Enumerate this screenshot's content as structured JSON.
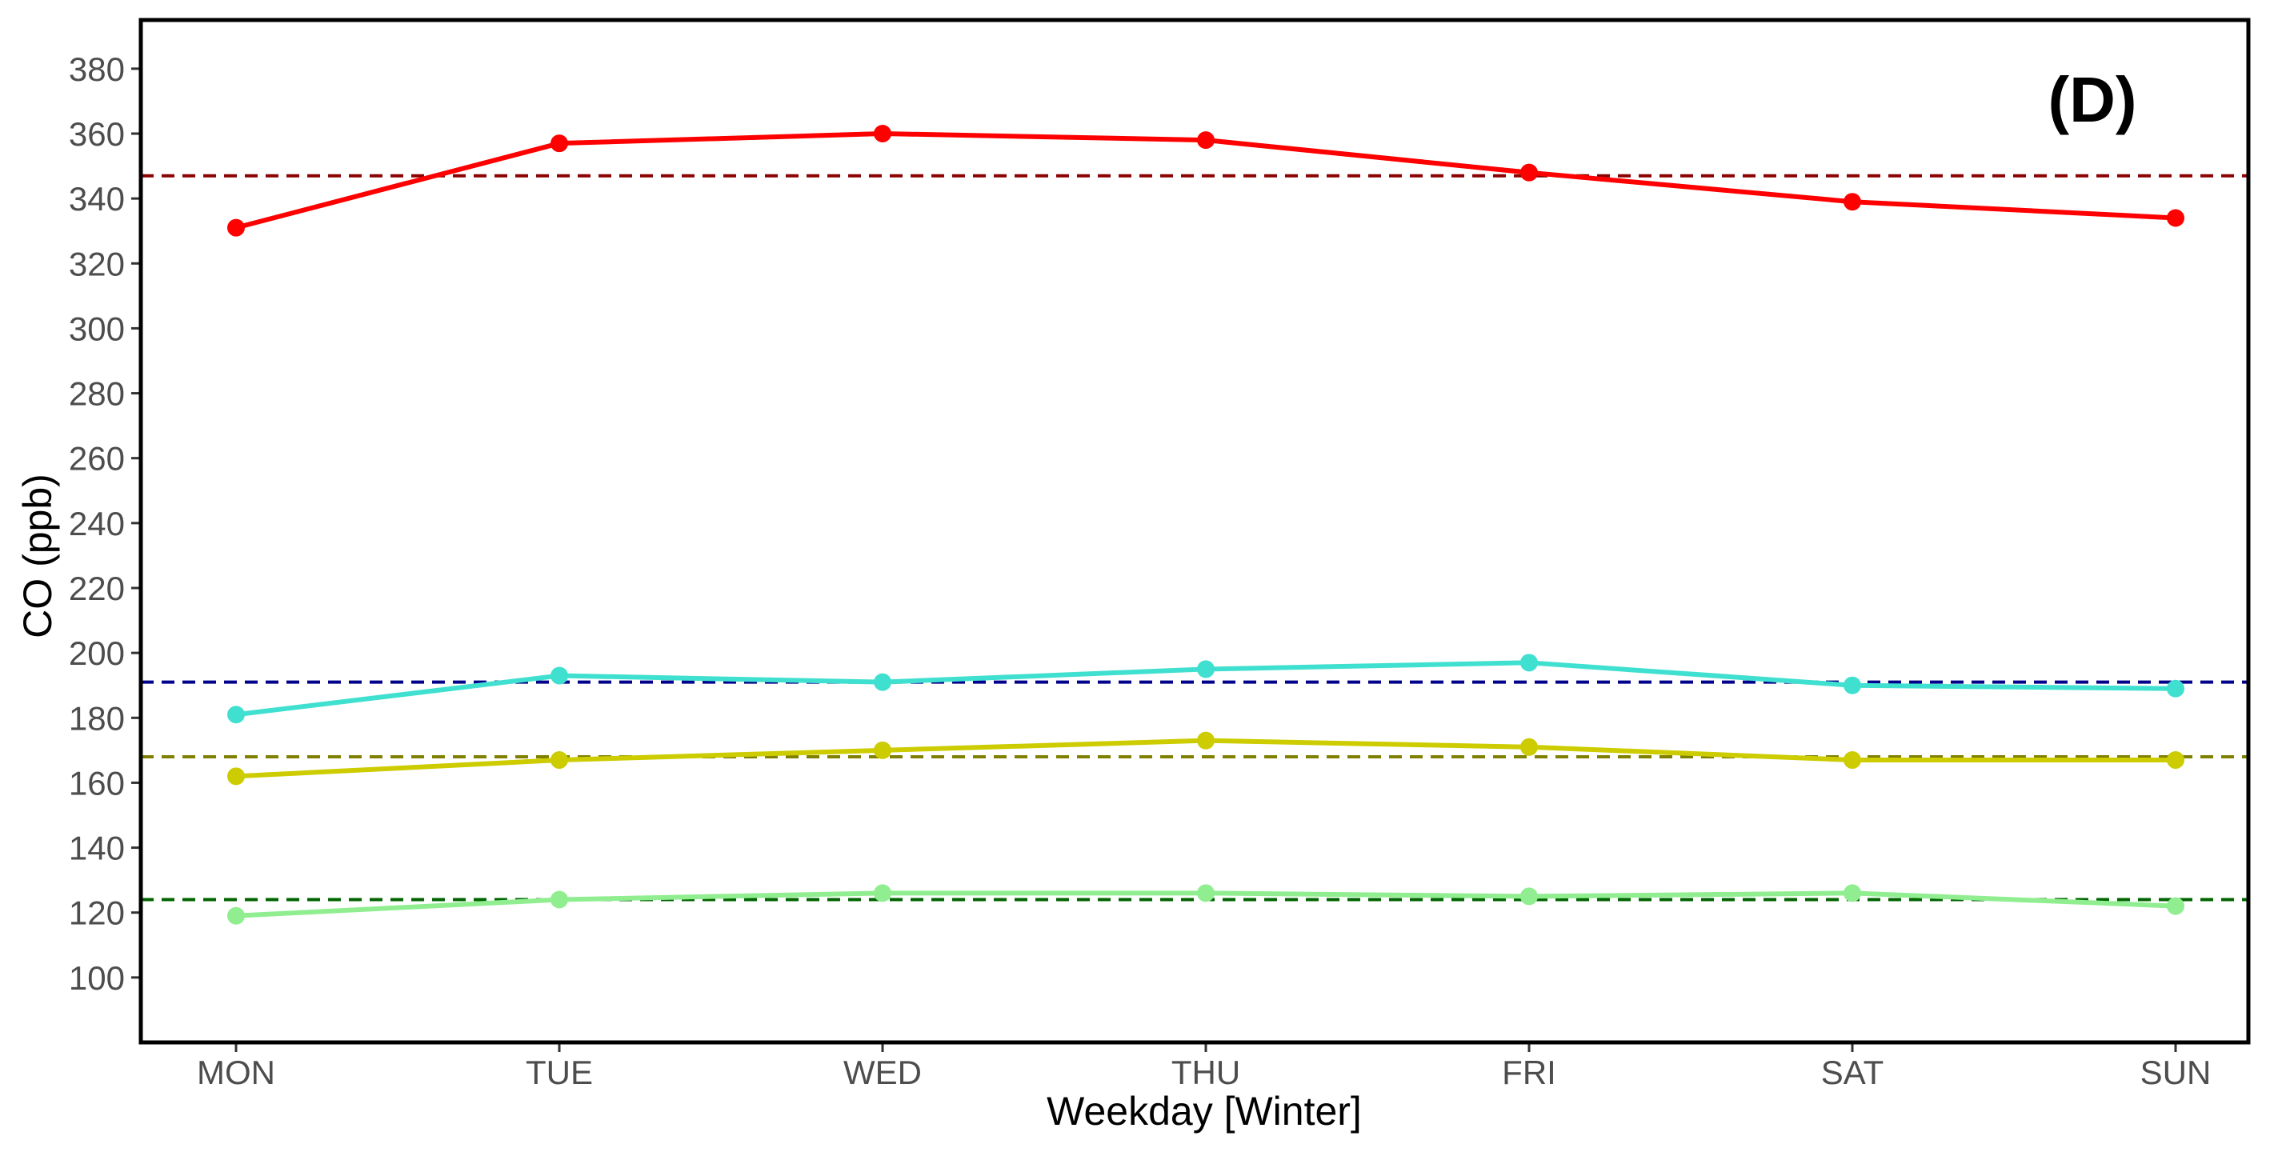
{
  "chart_data": {
    "type": "line",
    "panel_label": "(D)",
    "xlabel": "Weekday [Winter]",
    "ylabel": "CO (ppb)",
    "categories": [
      "MON",
      "TUE",
      "WED",
      "THU",
      "FRI",
      "SAT",
      "SUN"
    ],
    "yticks": [
      100,
      120,
      140,
      160,
      180,
      200,
      220,
      240,
      260,
      280,
      300,
      320,
      340,
      360,
      380
    ],
    "ylim": [
      80,
      395
    ],
    "grid": false,
    "legend": "none",
    "series": [
      {
        "color": "#ff0000",
        "values": [
          331,
          357,
          360,
          358,
          348,
          339,
          334
        ]
      },
      {
        "color": "#40e0d0",
        "values": [
          181,
          193,
          191,
          195,
          197,
          190,
          189
        ]
      },
      {
        "color": "#cccc00",
        "values": [
          162,
          167,
          170,
          173,
          171,
          167,
          167
        ]
      },
      {
        "color": "#90ee90",
        "values": [
          119,
          124,
          126,
          126,
          125,
          126,
          122
        ]
      }
    ],
    "reference_lines": [
      {
        "value": 347,
        "color": "#8b0000"
      },
      {
        "value": 191,
        "color": "#00008b"
      },
      {
        "value": 168,
        "color": "#808000"
      },
      {
        "value": 124,
        "color": "#006400"
      }
    ]
  }
}
